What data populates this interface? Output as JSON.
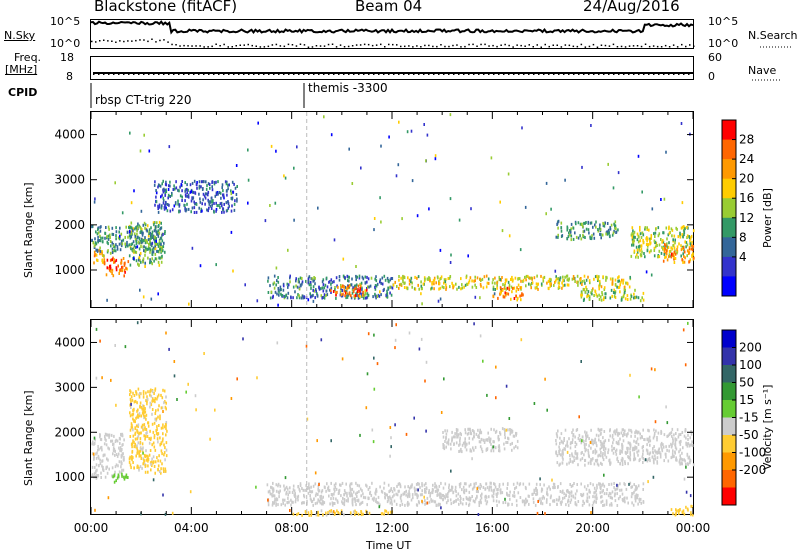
{
  "header": {
    "title": "Blackstone (fitACF)",
    "beam": "Beam 04",
    "date": "24/Aug/2016"
  },
  "left_labels": {
    "nsky": "N.Sky",
    "freq": "Freq.",
    "mhz": "[MHz]",
    "cpid": "CPID"
  },
  "right_labels": {
    "nsearch": "N.Search",
    "nave": "Nave"
  },
  "noise_axis": {
    "left_ticks": [
      "10^5",
      "10^0"
    ],
    "right_ticks": [
      "10^5",
      "10^0"
    ]
  },
  "freq_axis": {
    "left_ticks": [
      "18",
      "8"
    ],
    "right_ticks": [
      "60",
      "0"
    ]
  },
  "cpid": {
    "segments": [
      "rbsp CT-trig 220",
      "themis -3300"
    ]
  },
  "x_axis": {
    "label": "Time UT",
    "ticks": [
      "00:00",
      "04:00",
      "08:00",
      "12:00",
      "16:00",
      "20:00",
      "00:00"
    ]
  },
  "y_axis": {
    "label": "Slant Range [km]",
    "ticks": [
      "4000",
      "3000",
      "2000",
      "1000"
    ]
  },
  "power_scale": {
    "label": "Power [dB]",
    "ticks": [
      "28",
      "24",
      "20",
      "16",
      "12",
      "8",
      "4"
    ],
    "colors": [
      "#ff0000",
      "#ff6600",
      "#ff9900",
      "#ffcc00",
      "#99cc33",
      "#339966",
      "#336699",
      "#3333cc",
      "#0000ff"
    ]
  },
  "velocity_scale": {
    "label": "Velocity [m s⁻¹]",
    "ticks": [
      "200",
      "100",
      "50",
      "15",
      "-15",
      "-50",
      "-100",
      "-200"
    ],
    "colors": [
      "#0000cc",
      "#3333aa",
      "#336666",
      "#339933",
      "#66cc33",
      "#cccccc",
      "#ffcc33",
      "#ff9900",
      "#ff6600",
      "#ff0000"
    ]
  },
  "chart_data": [
    {
      "type": "heatmap",
      "title": "Power",
      "xlabel": "Time UT",
      "ylabel": "Slant Range [km]",
      "xlim": [
        0,
        24
      ],
      "ylim": [
        180,
        4500
      ],
      "colorbar_label": "Power [dB]",
      "colorbar_range": [
        0,
        32
      ],
      "echo_bands": [
        {
          "t0": 0.0,
          "t1": 0.5,
          "r0": 1150,
          "r1": 1500,
          "value": 22
        },
        {
          "t0": 0.5,
          "t1": 1.5,
          "r0": 900,
          "r1": 1300,
          "value": 26
        },
        {
          "t0": 1.5,
          "t1": 2.8,
          "r0": 1100,
          "r1": 2100,
          "value": 14
        },
        {
          "t0": 0.0,
          "t1": 3.0,
          "r0": 1400,
          "r1": 2000,
          "value": 12
        },
        {
          "t0": 2.5,
          "t1": 5.8,
          "r0": 2300,
          "r1": 3000,
          "value": 8
        },
        {
          "t0": 7.0,
          "t1": 12.0,
          "r0": 400,
          "r1": 900,
          "value": 10
        },
        {
          "t0": 9.5,
          "t1": 11.0,
          "r0": 450,
          "r1": 700,
          "value": 26
        },
        {
          "t0": 12.0,
          "t1": 21.5,
          "r0": 600,
          "r1": 900,
          "value": 18
        },
        {
          "t0": 16.0,
          "t1": 17.2,
          "r0": 350,
          "r1": 650,
          "value": 24
        },
        {
          "t0": 19.5,
          "t1": 22.0,
          "r0": 350,
          "r1": 600,
          "value": 16
        },
        {
          "t0": 18.5,
          "t1": 21.0,
          "r0": 1700,
          "r1": 2100,
          "value": 12
        },
        {
          "t0": 21.5,
          "t1": 24.0,
          "r0": 1300,
          "r1": 2000,
          "value": 16
        },
        {
          "t0": 22.8,
          "t1": 24.0,
          "r0": 1200,
          "r1": 1600,
          "value": 24
        }
      ]
    },
    {
      "type": "heatmap",
      "title": "Velocity",
      "xlabel": "Time UT",
      "ylabel": "Slant Range [km]",
      "xlim": [
        0,
        24
      ],
      "ylim": [
        180,
        4500
      ],
      "colorbar_label": "Velocity [m s⁻¹]",
      "colorbar_range": [
        -250,
        250
      ],
      "echo_bands": [
        {
          "t0": 0.0,
          "t1": 1.3,
          "r0": 1000,
          "r1": 2000,
          "value": 0
        },
        {
          "t0": 0.8,
          "t1": 1.5,
          "r0": 900,
          "r1": 1100,
          "value": 30
        },
        {
          "t0": 1.5,
          "t1": 3.0,
          "r0": 1100,
          "r1": 3000,
          "value": -60
        },
        {
          "t0": 7.0,
          "t1": 22.0,
          "r0": 400,
          "r1": 900,
          "value": 0
        },
        {
          "t0": 8.0,
          "t1": 12.0,
          "r0": 180,
          "r1": 300,
          "value": -60
        },
        {
          "t0": 14.0,
          "t1": 17.0,
          "r0": 1600,
          "r1": 2100,
          "value": 0
        },
        {
          "t0": 18.5,
          "t1": 24.0,
          "r0": 1300,
          "r1": 2100,
          "value": 0
        },
        {
          "t0": 23.0,
          "t1": 24.0,
          "r0": 180,
          "r1": 400,
          "value": -80
        }
      ]
    }
  ]
}
